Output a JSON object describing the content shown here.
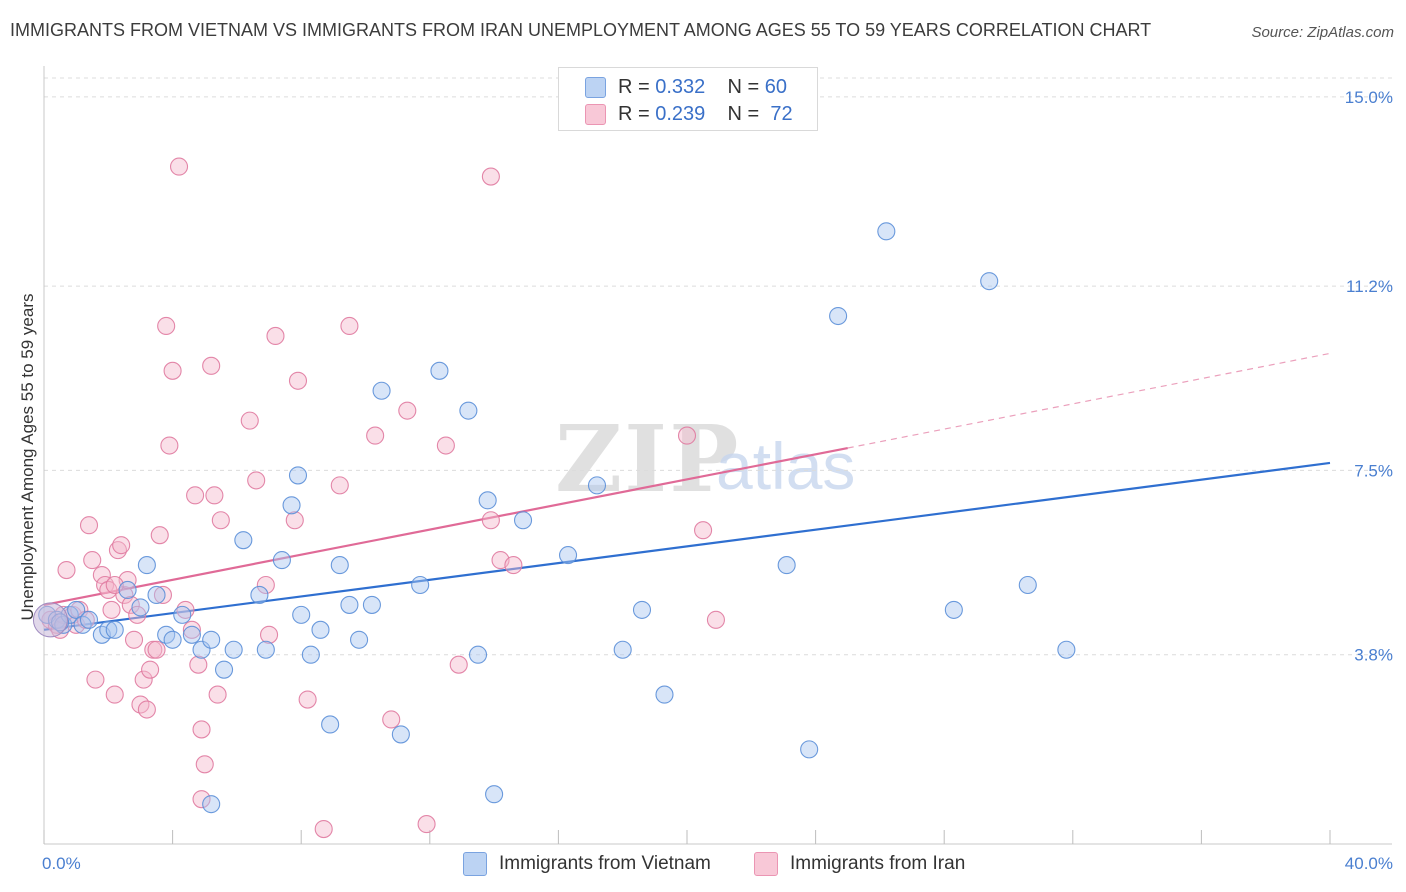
{
  "chart_data": {
    "type": "scatter",
    "title": "IMMIGRANTS FROM VIETNAM VS IMMIGRANTS FROM IRAN UNEMPLOYMENT AMONG AGES 55 TO 59 YEARS CORRELATION CHART",
    "source": "Source: ZipAtlas.com",
    "xlabel": "",
    "ylabel": "Unemployment Among Ages 55 to 59 years",
    "xlim": [
      0,
      40
    ],
    "ylim": [
      0,
      15.7
    ],
    "x_tick_labels": {
      "left": "0.0%",
      "right": "40.0%"
    },
    "y_ticks": [
      {
        "value": 3.8,
        "label": "3.8%"
      },
      {
        "value": 7.5,
        "label": "7.5%"
      },
      {
        "value": 11.2,
        "label": "11.2%"
      },
      {
        "value": 15.0,
        "label": "15.0%"
      }
    ],
    "watermark": {
      "zip": "ZIP",
      "atlas": "atlas"
    },
    "legend": [
      {
        "r_label": "R =",
        "r": "0.332",
        "n_label": "N =",
        "n": "60"
      },
      {
        "r_label": "R =",
        "r": "0.239",
        "n_label": "N =",
        "n": "72"
      }
    ],
    "series": [
      {
        "name": "Immigrants from Vietnam",
        "color": "#5b8fd8",
        "fill": "#a9c6ef",
        "trend": {
          "x0": 0,
          "y0": 4.3,
          "x1": 40,
          "y1": 7.65,
          "style": "solid"
        },
        "points": [
          [
            0.1,
            4.6
          ],
          [
            0.4,
            4.5
          ],
          [
            0.6,
            4.4
          ],
          [
            0.8,
            4.6
          ],
          [
            1.0,
            4.7
          ],
          [
            1.2,
            4.4
          ],
          [
            1.4,
            4.5
          ],
          [
            1.8,
            4.2
          ],
          [
            2.0,
            4.3
          ],
          [
            2.2,
            4.3
          ],
          [
            2.6,
            5.1
          ],
          [
            3.0,
            4.75
          ],
          [
            3.2,
            5.6
          ],
          [
            3.5,
            5.0
          ],
          [
            3.8,
            4.2
          ],
          [
            4.0,
            4.1
          ],
          [
            4.3,
            4.6
          ],
          [
            4.6,
            4.2
          ],
          [
            4.9,
            3.9
          ],
          [
            5.2,
            4.1
          ],
          [
            5.6,
            3.5
          ],
          [
            5.9,
            3.9
          ],
          [
            6.2,
            6.1
          ],
          [
            6.7,
            5.0
          ],
          [
            6.9,
            3.9
          ],
          [
            7.4,
            5.7
          ],
          [
            7.7,
            6.8
          ],
          [
            7.9,
            7.4
          ],
          [
            8.0,
            4.6
          ],
          [
            8.3,
            3.8
          ],
          [
            8.6,
            4.3
          ],
          [
            8.9,
            2.4
          ],
          [
            9.2,
            5.6
          ],
          [
            9.5,
            4.8
          ],
          [
            9.8,
            4.1
          ],
          [
            10.2,
            4.8
          ],
          [
            10.5,
            9.1
          ],
          [
            11.1,
            2.2
          ],
          [
            11.7,
            5.2
          ],
          [
            12.3,
            9.5
          ],
          [
            13.2,
            8.7
          ],
          [
            13.5,
            3.8
          ],
          [
            13.8,
            6.9
          ],
          [
            14.0,
            1.0
          ],
          [
            14.9,
            6.5
          ],
          [
            16.3,
            5.8
          ],
          [
            17.2,
            7.2
          ],
          [
            18.0,
            3.9
          ],
          [
            18.6,
            4.7
          ],
          [
            19.3,
            3.0
          ],
          [
            5.2,
            0.8
          ],
          [
            23.1,
            5.6
          ],
          [
            23.8,
            1.9
          ],
          [
            24.7,
            10.6
          ],
          [
            26.2,
            12.3
          ],
          [
            28.3,
            4.7
          ],
          [
            29.4,
            11.3
          ],
          [
            30.6,
            5.2
          ],
          [
            31.8,
            3.9
          ],
          [
            0.5,
            4.45
          ]
        ]
      },
      {
        "name": "Immigrants from Iran",
        "color": "#e07aa0",
        "fill": "#f4b9cc",
        "trend": {
          "x0": 0,
          "y0": 4.8,
          "x1": 25.0,
          "y1": 7.95,
          "dash_x1": 40,
          "dash_y1": 9.85
        },
        "points": [
          [
            0.2,
            4.5
          ],
          [
            0.4,
            4.4
          ],
          [
            0.5,
            4.3
          ],
          [
            0.6,
            4.6
          ],
          [
            0.7,
            5.5
          ],
          [
            0.9,
            4.6
          ],
          [
            1.0,
            4.4
          ],
          [
            1.1,
            4.7
          ],
          [
            1.4,
            6.4
          ],
          [
            1.5,
            5.7
          ],
          [
            1.6,
            3.3
          ],
          [
            1.8,
            5.4
          ],
          [
            1.9,
            5.2
          ],
          [
            2.0,
            5.1
          ],
          [
            2.1,
            4.7
          ],
          [
            2.2,
            3.0
          ],
          [
            2.3,
            5.9
          ],
          [
            2.4,
            6.0
          ],
          [
            2.5,
            5.0
          ],
          [
            2.6,
            5.3
          ],
          [
            2.7,
            4.8
          ],
          [
            2.8,
            4.1
          ],
          [
            2.9,
            4.6
          ],
          [
            3.0,
            2.8
          ],
          [
            3.1,
            3.3
          ],
          [
            3.2,
            2.7
          ],
          [
            3.3,
            3.5
          ],
          [
            3.4,
            3.9
          ],
          [
            3.5,
            3.9
          ],
          [
            3.6,
            6.2
          ],
          [
            3.8,
            10.4
          ],
          [
            3.9,
            8.0
          ],
          [
            4.0,
            9.5
          ],
          [
            4.2,
            13.6
          ],
          [
            4.4,
            4.7
          ],
          [
            4.6,
            4.3
          ],
          [
            4.7,
            7.0
          ],
          [
            4.8,
            3.6
          ],
          [
            4.9,
            2.3
          ],
          [
            4.9,
            0.9
          ],
          [
            5.0,
            1.6
          ],
          [
            5.2,
            9.6
          ],
          [
            5.3,
            7.0
          ],
          [
            5.4,
            3.0
          ],
          [
            5.5,
            6.5
          ],
          [
            6.4,
            8.5
          ],
          [
            6.6,
            7.3
          ],
          [
            6.9,
            5.2
          ],
          [
            7.0,
            4.2
          ],
          [
            7.2,
            10.2
          ],
          [
            7.8,
            6.5
          ],
          [
            7.9,
            9.3
          ],
          [
            8.2,
            2.9
          ],
          [
            8.7,
            0.3
          ],
          [
            9.2,
            7.2
          ],
          [
            9.5,
            10.4
          ],
          [
            10.3,
            8.2
          ],
          [
            10.8,
            2.5
          ],
          [
            11.3,
            8.7
          ],
          [
            11.9,
            0.4
          ],
          [
            12.5,
            8.0
          ],
          [
            12.9,
            3.6
          ],
          [
            13.9,
            6.5
          ],
          [
            13.9,
            13.4
          ],
          [
            14.2,
            5.7
          ],
          [
            14.6,
            5.6
          ],
          [
            20.0,
            8.2
          ],
          [
            20.5,
            6.3
          ],
          [
            20.9,
            4.5
          ],
          [
            2.2,
            5.2
          ],
          [
            3.7,
            5.0
          ],
          [
            1.3,
            4.5
          ]
        ]
      }
    ]
  }
}
